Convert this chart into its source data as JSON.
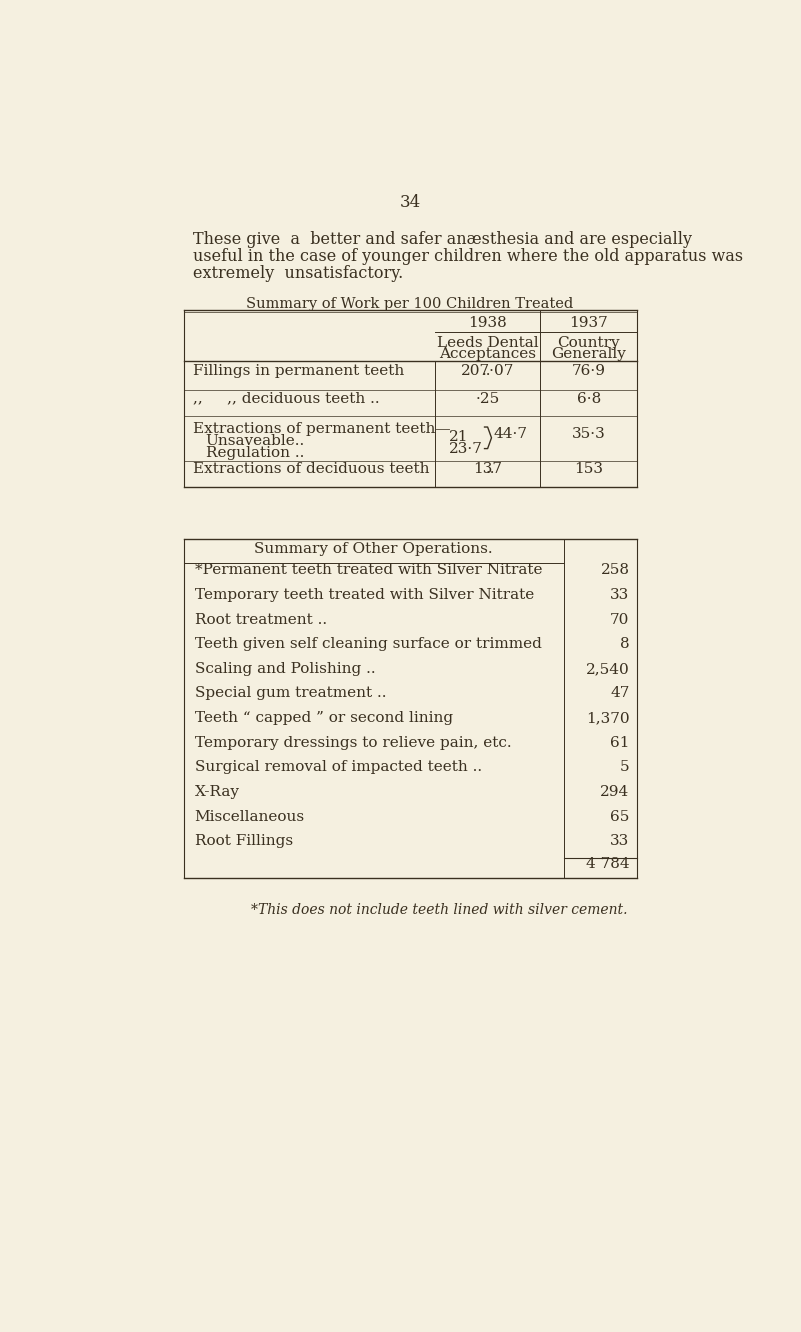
{
  "bg_color": "#f5f0e0",
  "text_color": "#3a3020",
  "page_number": "34",
  "intro_lines": [
    "These give  a  better and safer anæsthesia and are especially",
    "useful in the case of younger children where the old apparatus was",
    "extremely  unsatisfactory."
  ],
  "table1_title": "Summary of Work per 100 Children Treated",
  "table1_col1938": "1938",
  "table1_col1937": "1937",
  "table1_sub1938": "Leeds Dental\nAcceptances",
  "table1_sub1937": "Country\nGenerally",
  "table2_title": "Summary of Other Operations.",
  "table2_rows": [
    {
      "label": "*Permanent teeth treated with Silver Nitrate",
      "dots": ".. ..",
      "value": "258"
    },
    {
      "label": "Temporary teeth treated with Silver Nitrate",
      "dots": ".. ..",
      "value": "33"
    },
    {
      "label": "Root treatment ..",
      "dots": ".. .. .. .. ..",
      "value": "70"
    },
    {
      "label": "Teeth given self cleaning surface or trimmed",
      "dots": ".. ..",
      "value": "8"
    },
    {
      "label": "Scaling and Polishing ..",
      "dots": ".. .. .. .. ..",
      "value": "2,540"
    },
    {
      "label": "Special gum treatment ..",
      "dots": ".. .. .. .. ..",
      "value": "47"
    },
    {
      "label": "Teeth “ capped ” or second lining",
      "dots": ".. .. .. ..",
      "value": "1,370"
    },
    {
      "label": "Temporary dressings to relieve pain, etc.",
      "dots": ".. .. ..",
      "value": "61"
    },
    {
      "label": "Surgical removal of impacted teeth ..",
      "dots": ".. .. ..",
      "value": "5"
    },
    {
      "label": "X-Ray",
      "dots": ".. .. .. .. .. .. ..",
      "value": "294"
    },
    {
      "label": "Miscellaneous",
      "dots": ".. .. .. .. .. ..",
      "value": "65"
    },
    {
      "label": "Root Fillings",
      "dots": ".. .. .. .. .. ..",
      "value": "33"
    }
  ],
  "table2_total": "4 784",
  "footnote": "*This does not include teeth lined with silver cement."
}
